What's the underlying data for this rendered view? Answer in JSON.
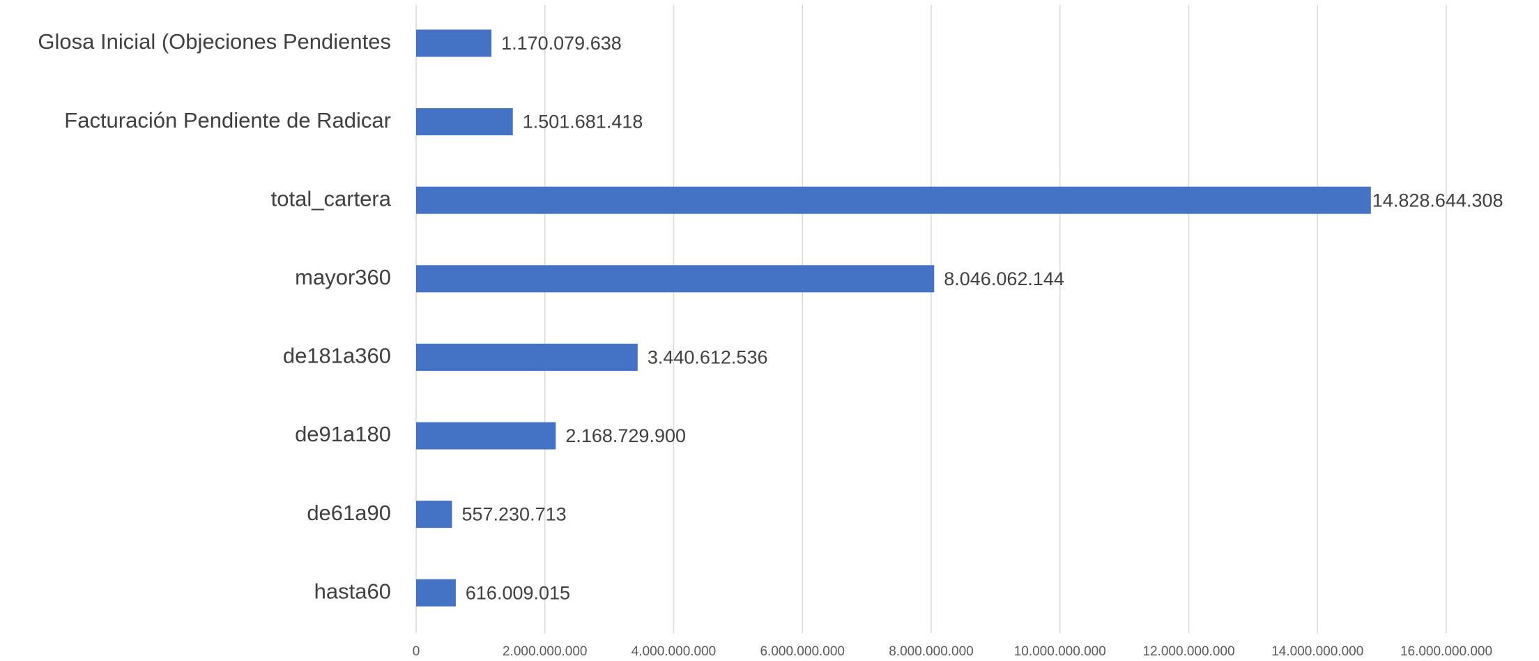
{
  "chart_data": {
    "type": "bar",
    "orientation": "horizontal",
    "color": "#4472c4",
    "grid": true,
    "categories": [
      "Glosa Inicial (Objeciones Pendientes",
      "Facturación Pendiente de Radicar",
      "total_cartera",
      "mayor360",
      "de181a360",
      "de91a180",
      "de61a90",
      "hasta60"
    ],
    "values": [
      1170079638,
      1501681418,
      14828644308,
      8046062144,
      3440612536,
      2168729900,
      557230713,
      616009015
    ],
    "value_labels": [
      "1.170.079.638",
      "1.501.681.418",
      "14.828.644.308",
      "8.046.062.144",
      "3.440.612.536",
      "2.168.729.900",
      "557.230.713",
      "616.009.015"
    ],
    "xlim": [
      0,
      16000000000
    ],
    "xticks": [
      0,
      {
        "value": 2000000000,
        "label": "2.000.000.000"
      },
      {
        "value": 4000000000,
        "label": "4.000.000.000"
      },
      {
        "value": 6000000000,
        "label": "6.000.000.000"
      },
      {
        "value": 8000000000,
        "label": "8.000.000.000"
      },
      {
        "value": 10000000000,
        "label": "10.000.000.000"
      },
      {
        "value": 12000000000,
        "label": "12.000.000.000"
      },
      {
        "value": 14000000000,
        "label": "14.000.000.000"
      },
      {
        "value": 16000000000,
        "label": "16.000.000.000"
      }
    ]
  }
}
